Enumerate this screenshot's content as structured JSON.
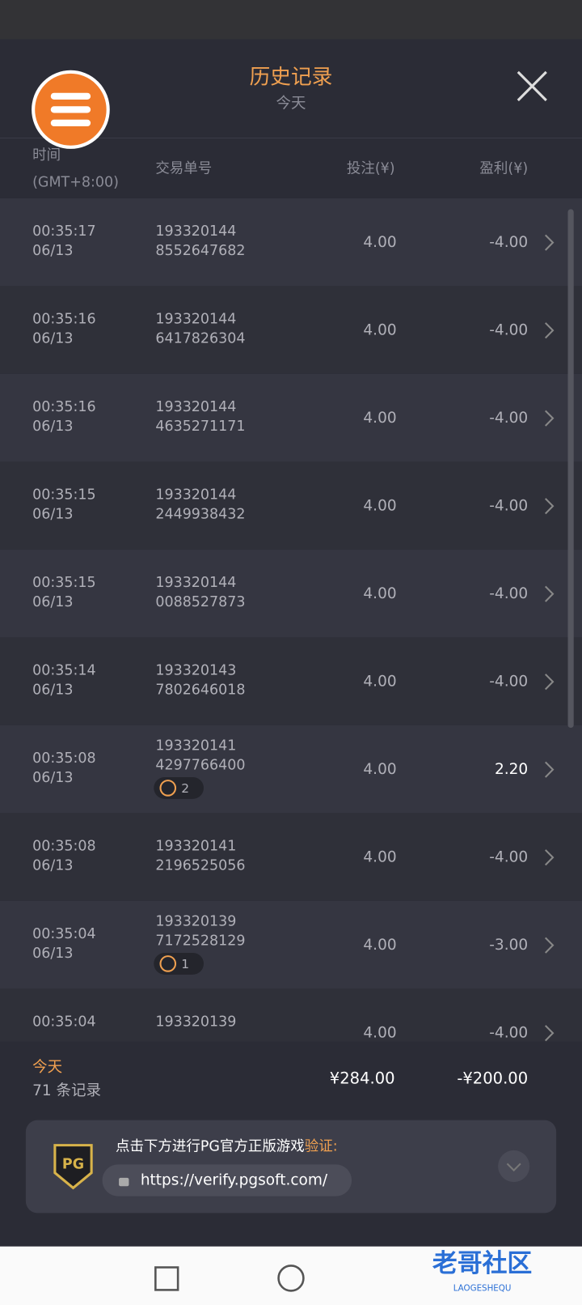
{
  "header": {
    "title": "历史记录",
    "subtitle": "今天"
  },
  "columns": {
    "time": "时间",
    "timezone": "(GMT+8:00)",
    "id": "交易单号",
    "bet": "投注(¥)",
    "profit": "盈利(¥)"
  },
  "rows": [
    {
      "time": "00:35:17",
      "date": "06/13",
      "id1": "193320144",
      "id2": "8552647682",
      "badge": null,
      "bet": "4.00",
      "profit": "-4.00"
    },
    {
      "time": "00:35:16",
      "date": "06/13",
      "id1": "193320144",
      "id2": "6417826304",
      "badge": null,
      "bet": "4.00",
      "profit": "-4.00"
    },
    {
      "time": "00:35:16",
      "date": "06/13",
      "id1": "193320144",
      "id2": "4635271171",
      "badge": null,
      "bet": "4.00",
      "profit": "-4.00"
    },
    {
      "time": "00:35:15",
      "date": "06/13",
      "id1": "193320144",
      "id2": "2449938432",
      "badge": null,
      "bet": "4.00",
      "profit": "-4.00"
    },
    {
      "time": "00:35:15",
      "date": "06/13",
      "id1": "193320144",
      "id2": "0088527873",
      "badge": null,
      "bet": "4.00",
      "profit": "-4.00"
    },
    {
      "time": "00:35:14",
      "date": "06/13",
      "id1": "193320143",
      "id2": "7802646018",
      "badge": null,
      "bet": "4.00",
      "profit": "-4.00"
    },
    {
      "time": "00:35:08",
      "date": "06/13",
      "id1": "193320141",
      "id2": "4297766400",
      "badge": "2",
      "bet": "4.00",
      "profit": "2.20"
    },
    {
      "time": "00:35:08",
      "date": "06/13",
      "id1": "193320141",
      "id2": "2196525056",
      "badge": null,
      "bet": "4.00",
      "profit": "-4.00"
    },
    {
      "time": "00:35:04",
      "date": "06/13",
      "id1": "193320139",
      "id2": "7172528129",
      "badge": "1",
      "bet": "4.00",
      "profit": "-3.00"
    },
    {
      "time": "00:35:04",
      "date": null,
      "id1": "193320139",
      "id2": null,
      "badge": null,
      "bet": "4.00",
      "profit": "-4.00"
    }
  ],
  "footer": {
    "label": "今天",
    "count": "71 条记录",
    "bet_total": "¥284.00",
    "profit_total": "-¥200.00"
  },
  "banner": {
    "logo": "PG",
    "text": "点击下方进行PG官方正版游戏",
    "highlight": "验证:",
    "url": "https://verify.pgsoft.com/"
  },
  "watermark": {
    "title": "老哥社区",
    "sub": "LAOGESHEQU"
  }
}
